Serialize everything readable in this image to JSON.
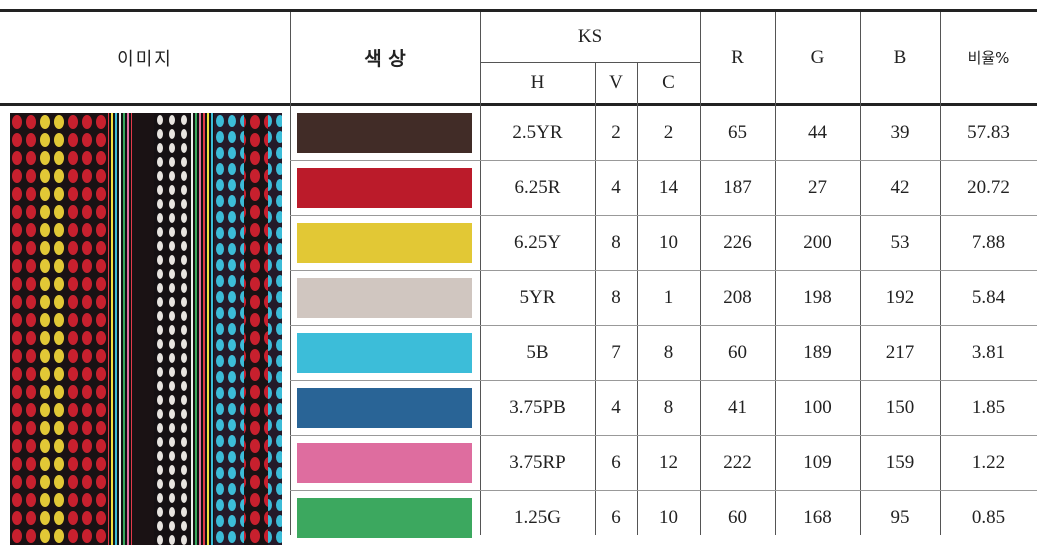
{
  "table": {
    "header": {
      "image": "이미지",
      "color": "색 상",
      "ks": "KS",
      "h": "H",
      "v": "V",
      "c": "C",
      "r": "R",
      "g": "G",
      "b": "B",
      "ratio": "비율%"
    },
    "rows": [
      [
        "2.5YR",
        2,
        2,
        65,
        44,
        39,
        57.83
      ],
      [
        "6.25R",
        4,
        14,
        187,
        27,
        42,
        20.72
      ],
      [
        "6.25Y",
        8,
        10,
        226,
        200,
        53,
        7.88
      ],
      [
        "5YR",
        8,
        1,
        208,
        198,
        192,
        5.84
      ],
      [
        "5B",
        7,
        8,
        60,
        189,
        217,
        3.81
      ],
      [
        "3.75PB",
        4,
        8,
        41,
        100,
        150,
        1.85
      ],
      [
        "3.75RP",
        6,
        12,
        222,
        109,
        159,
        1.22
      ],
      [
        "1.25G",
        6,
        10,
        60,
        168,
        95,
        0.85
      ]
    ]
  }
}
